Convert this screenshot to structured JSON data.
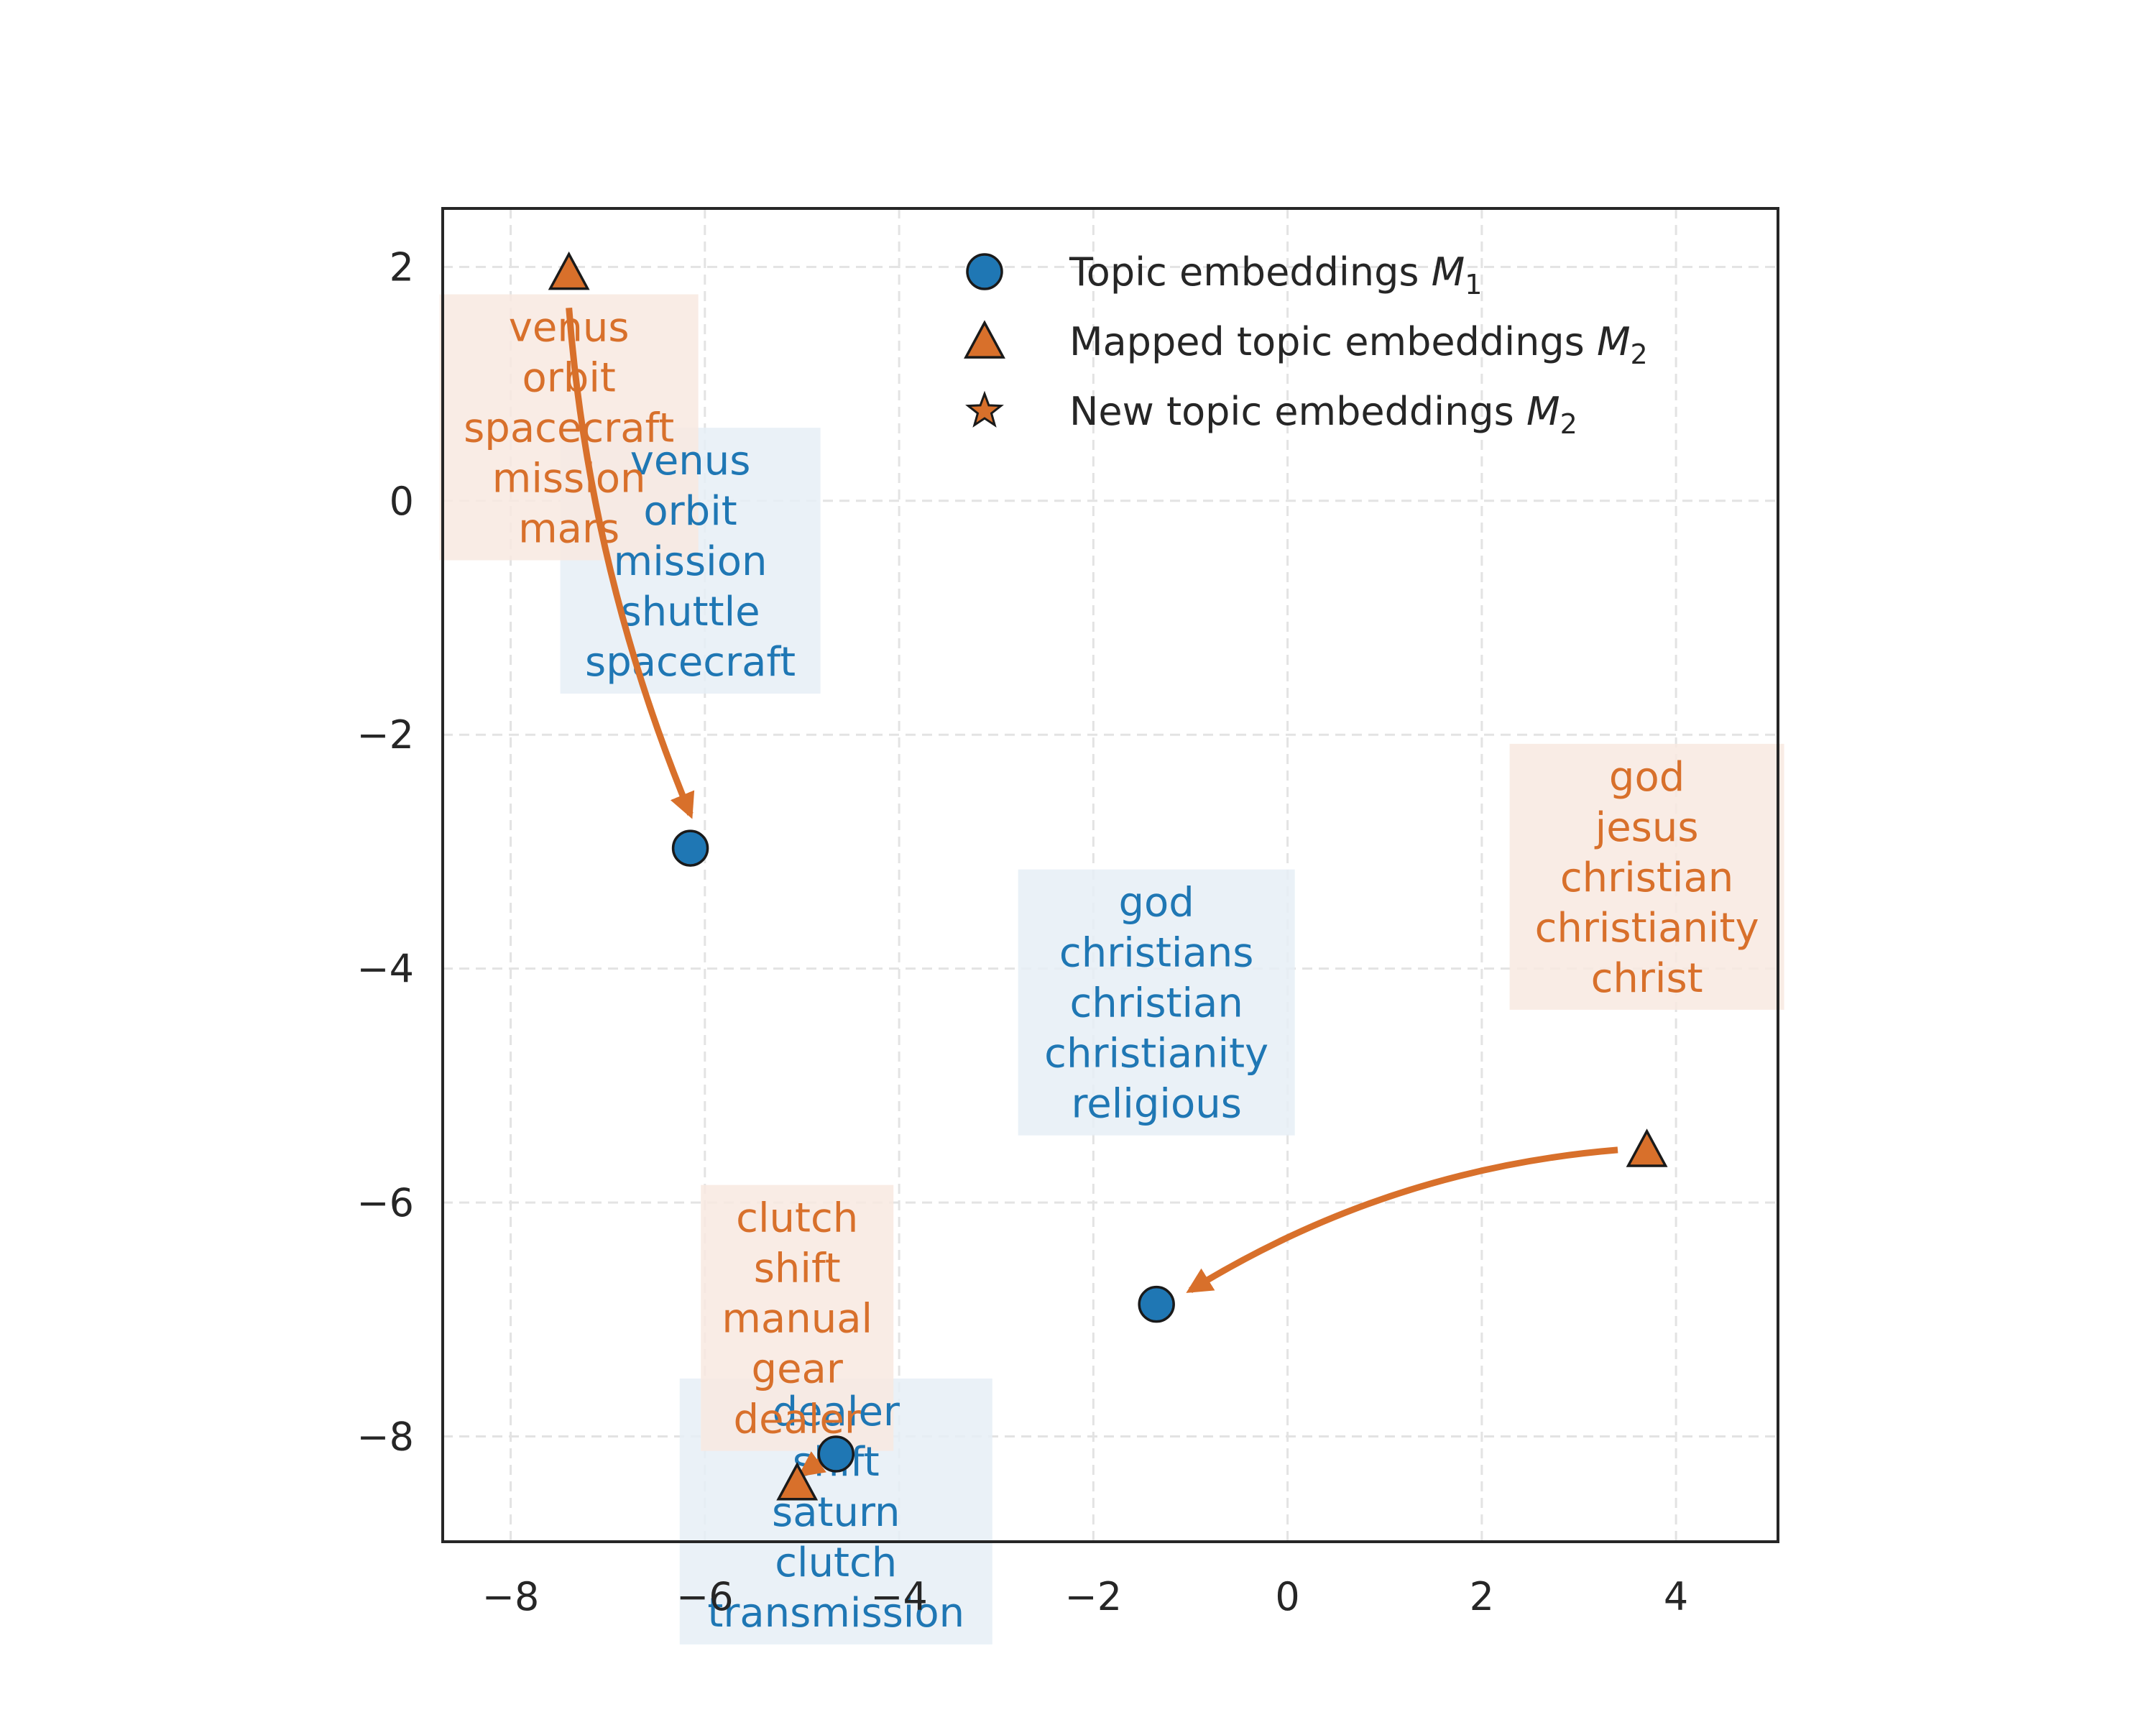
{
  "chart_data": {
    "type": "scatter",
    "title": "",
    "xlabel": "",
    "ylabel": "",
    "xlim": [
      -8.7,
      5.05
    ],
    "ylim": [
      -8.9,
      2.5
    ],
    "xticks": [
      -8,
      -6,
      -4,
      -2,
      0,
      2,
      4
    ],
    "yticks": [
      -8,
      -6,
      -4,
      -2,
      0,
      2
    ],
    "xtick_labels": [
      "−8",
      "−6",
      "−4",
      "−2",
      "0",
      "2",
      "4"
    ],
    "ytick_labels": [
      "−8",
      "−6",
      "−4",
      "−2",
      "0",
      "2"
    ],
    "grid": true,
    "legend_position": "top-right",
    "colors": {
      "m1": "#1f77b4",
      "m2": "#d8702b",
      "m1_box": "#e6eef6",
      "m2_box": "#f8e9e0",
      "axis": "#262626"
    },
    "legend": [
      {
        "marker": "circle",
        "label": "Topic embeddings ",
        "math": "M",
        "sub": "1"
      },
      {
        "marker": "triangle",
        "label": "Mapped topic embeddings ",
        "math": "M",
        "sub": "2"
      },
      {
        "marker": "star",
        "label": "New topic embeddings ",
        "math": "M",
        "sub": "2"
      }
    ],
    "series": [
      {
        "name": "Topic embeddings M1",
        "marker": "circle",
        "points": [
          {
            "x": -6.15,
            "y": -2.97,
            "words": [
              "venus",
              "orbit",
              "mission",
              "shuttle",
              "spacecraft"
            ]
          },
          {
            "x": -1.35,
            "y": -6.87,
            "words": [
              "god",
              "christians",
              "christian",
              "christianity",
              "religious"
            ]
          },
          {
            "x": -4.65,
            "y": -8.15,
            "words": [
              "dealer",
              "shift",
              "saturn",
              "clutch",
              "transmission"
            ]
          }
        ]
      },
      {
        "name": "Mapped topic embeddings M2",
        "marker": "triangle",
        "points": [
          {
            "x": -7.4,
            "y": 1.95,
            "words": [
              "venus",
              "orbit",
              "spacecraft",
              "mission",
              "mars"
            ]
          },
          {
            "x": 3.7,
            "y": -5.55,
            "words": [
              "god",
              "jesus",
              "christian",
              "christianity",
              "christ"
            ]
          },
          {
            "x": -5.05,
            "y": -8.4,
            "words": [
              "clutch",
              "shift",
              "manual",
              "gear",
              "dealer"
            ]
          }
        ]
      },
      {
        "name": "New topic embeddings M2",
        "marker": "star",
        "points": []
      }
    ],
    "arrows": [
      {
        "from": [
          -7.4,
          1.65
        ],
        "to": [
          -6.15,
          -2.68
        ],
        "rad": 0.08
      },
      {
        "from": [
          3.4,
          -5.55
        ],
        "to": [
          -1.0,
          -6.75
        ],
        "rad": 0.12
      },
      {
        "from": [
          -4.8,
          -8.2
        ],
        "to": [
          -5.0,
          -8.32
        ],
        "rad": 0.0
      }
    ]
  }
}
